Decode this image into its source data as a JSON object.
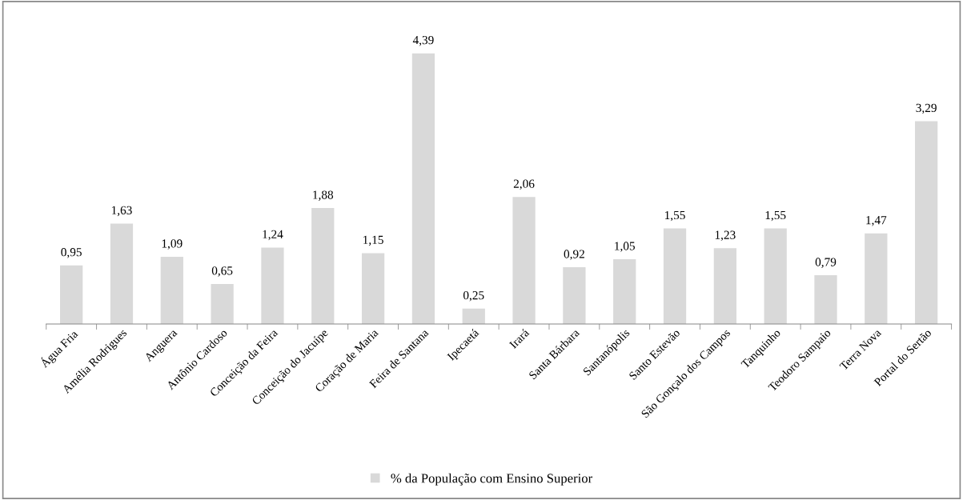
{
  "chart_data": {
    "type": "bar",
    "categories": [
      "Água Fria",
      "Amélia Rodrigues",
      "Anguera",
      "Antônio Cardoso",
      "Conceição da Feira",
      "Conceição do Jacuípe",
      "Coração de Maria",
      "Feira de Santana",
      "Ipecaetá",
      "Irará",
      "Santa Bárbara",
      "Santanópolis",
      "Santo Estevão",
      "São Gonçalo dos Campos",
      "Tanquinho",
      "Teodoro Sampaio",
      "Terra Nova",
      "Portal do Sertão"
    ],
    "series": [
      {
        "name": "% da População com Ensino Superior",
        "color": "#d9d9d9",
        "values": [
          0.95,
          1.63,
          1.09,
          0.65,
          1.24,
          1.88,
          1.15,
          4.39,
          0.25,
          2.06,
          0.92,
          1.05,
          1.55,
          1.23,
          1.55,
          0.79,
          1.47,
          3.29
        ],
        "value_labels": [
          "0,95",
          "1,63",
          "1,09",
          "0,65",
          "1,24",
          "1,88",
          "1,15",
          "4,39",
          "0,25",
          "2,06",
          "0,92",
          "1,05",
          "1,55",
          "1,23",
          "1,55",
          "0,79",
          "1,47",
          "3,29"
        ]
      }
    ],
    "tick_labels": "x",
    "grid": false,
    "legend": "bottom"
  }
}
